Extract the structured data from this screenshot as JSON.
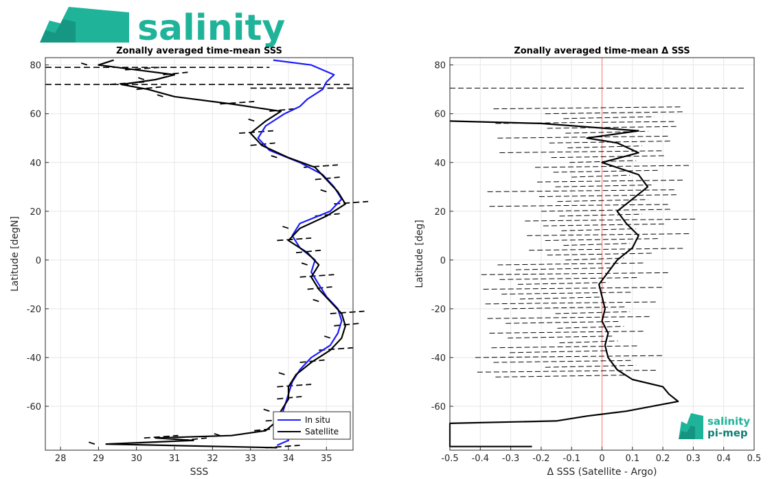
{
  "brand": {
    "logo_text": "salinity",
    "small_logo_line1": "salinity",
    "small_logo_line2": "pi-mep",
    "teal": "#1fb39a",
    "dark_teal": "#0f7f73"
  },
  "chart_data": [
    {
      "type": "line",
      "title": "Zonally averaged time-mean SSS",
      "xlabel": "SSS",
      "ylabel": "Latitude [degN]",
      "xlim": [
        27.6,
        35.7
      ],
      "ylim": [
        -78,
        83
      ],
      "xticks": [
        28,
        29,
        30,
        31,
        32,
        33,
        34,
        35
      ],
      "yticks": [
        -60,
        -40,
        -20,
        0,
        20,
        40,
        60,
        80
      ],
      "grid": true,
      "legend": {
        "position": "bottom-right",
        "entries": [
          "In situ",
          "Satellite"
        ]
      },
      "series": [
        {
          "name": "In situ",
          "color": "#1a1aff",
          "style": "solid",
          "points": [
            [
              33.7,
              -76
            ],
            [
              34.0,
              -74
            ],
            [
              33.9,
              -70
            ],
            [
              33.8,
              -65
            ],
            [
              33.9,
              -60
            ],
            [
              34.0,
              -55
            ],
            [
              34.1,
              -50
            ],
            [
              34.3,
              -45
            ],
            [
              34.6,
              -40
            ],
            [
              35.1,
              -35
            ],
            [
              35.3,
              -30
            ],
            [
              35.4,
              -25
            ],
            [
              35.3,
              -20
            ],
            [
              35.0,
              -15
            ],
            [
              34.8,
              -10
            ],
            [
              34.6,
              -5
            ],
            [
              34.7,
              0
            ],
            [
              34.3,
              5
            ],
            [
              34.1,
              10
            ],
            [
              34.3,
              15
            ],
            [
              35.1,
              20
            ],
            [
              35.4,
              25
            ],
            [
              35.2,
              30
            ],
            [
              34.9,
              35
            ],
            [
              34.3,
              40
            ],
            [
              33.5,
              45
            ],
            [
              33.2,
              50
            ],
            [
              33.4,
              55
            ],
            [
              33.9,
              60
            ],
            [
              34.3,
              63
            ],
            [
              34.5,
              66
            ],
            [
              34.9,
              70
            ],
            [
              35.0,
              73
            ],
            [
              35.2,
              76
            ],
            [
              34.6,
              80
            ],
            [
              33.6,
              82
            ]
          ]
        },
        {
          "name": "Satellite",
          "color": "#000000",
          "style": "solid",
          "points": [
            [
              33.7,
              -77
            ],
            [
              29.2,
              -75.5
            ],
            [
              31.5,
              -74
            ],
            [
              30.5,
              -73
            ],
            [
              32.5,
              -72
            ],
            [
              33.4,
              -70
            ],
            [
              33.7,
              -66
            ],
            [
              33.8,
              -62
            ],
            [
              34.0,
              -57
            ],
            [
              34.0,
              -52
            ],
            [
              34.2,
              -47
            ],
            [
              34.6,
              -42
            ],
            [
              35.1,
              -37
            ],
            [
              35.4,
              -32
            ],
            [
              35.5,
              -27
            ],
            [
              35.4,
              -22
            ],
            [
              35.1,
              -17
            ],
            [
              34.8,
              -12
            ],
            [
              34.6,
              -7
            ],
            [
              34.8,
              -2
            ],
            [
              34.5,
              3
            ],
            [
              34.0,
              8
            ],
            [
              34.3,
              13
            ],
            [
              35.0,
              18
            ],
            [
              35.5,
              23
            ],
            [
              35.3,
              28
            ],
            [
              35.0,
              33
            ],
            [
              34.7,
              38
            ],
            [
              34.0,
              42
            ],
            [
              33.3,
              47
            ],
            [
              33.0,
              52
            ],
            [
              33.4,
              57
            ],
            [
              33.8,
              61
            ],
            [
              32.5,
              64
            ],
            [
              31.0,
              67
            ],
            [
              30.3,
              70
            ],
            [
              29.6,
              72
            ],
            [
              30.5,
              74
            ],
            [
              31.0,
              76
            ],
            [
              30.0,
              78
            ],
            [
              29.0,
              80
            ],
            [
              29.4,
              82
            ]
          ]
        }
      ],
      "extra_traces_style": "dashed"
    },
    {
      "type": "line",
      "title": "Zonally averaged time-mean Δ SSS",
      "xlabel": "Δ SSS (Satellite - Argo)",
      "ylabel": "Latitude [deg]",
      "xlim": [
        -0.5,
        0.5
      ],
      "ylim": [
        -78,
        83
      ],
      "xticks": [
        -0.5,
        -0.4,
        -0.3,
        -0.2,
        -0.1,
        0,
        0.1,
        0.2,
        0.3,
        0.4,
        0.5
      ],
      "xtick_labels": [
        "-0.5",
        "-0.4",
        "-0.3",
        "-0.2",
        "-0.1",
        "0",
        "0.1",
        "0.2",
        "0.3",
        "0.4",
        "0.5"
      ],
      "yticks": [
        -60,
        -40,
        -20,
        0,
        20,
        40,
        60,
        80
      ],
      "grid": true,
      "zero_line_color": "#ff6b6b",
      "series": [
        {
          "name": "",
          "color": "#000000",
          "style": "solid",
          "points": [
            [
              -0.23,
              -76.5
            ],
            [
              -0.5,
              -76.5
            ],
            [
              -0.5,
              -67
            ],
            [
              -0.15,
              -66
            ],
            [
              -0.05,
              -64
            ],
            [
              0.08,
              -62
            ],
            [
              0.25,
              -58
            ],
            [
              0.22,
              -55
            ],
            [
              0.2,
              -52
            ],
            [
              0.1,
              -49
            ],
            [
              0.05,
              -45
            ],
            [
              0.02,
              -40
            ],
            [
              0.01,
              -35
            ],
            [
              0.02,
              -30
            ],
            [
              0.0,
              -25
            ],
            [
              0.01,
              -20
            ],
            [
              0.0,
              -15
            ],
            [
              -0.01,
              -10
            ],
            [
              0.02,
              -5
            ],
            [
              0.05,
              0
            ],
            [
              0.1,
              5
            ],
            [
              0.12,
              10
            ],
            [
              0.08,
              15
            ],
            [
              0.05,
              20
            ],
            [
              0.1,
              25
            ],
            [
              0.15,
              30
            ],
            [
              0.12,
              35
            ],
            [
              0.0,
              40
            ],
            [
              0.12,
              44
            ],
            [
              0.05,
              48
            ],
            [
              -0.05,
              50
            ],
            [
              0.12,
              53
            ],
            [
              -0.2,
              56
            ],
            [
              -0.5,
              57
            ]
          ]
        }
      ],
      "extra_traces_style": "dashed"
    }
  ]
}
